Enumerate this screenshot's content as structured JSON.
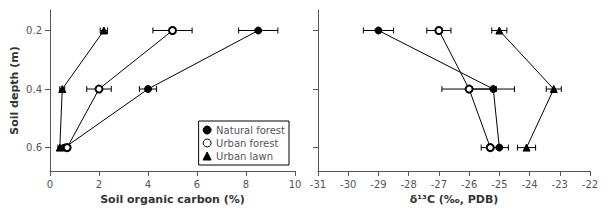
{
  "chart_data": [
    {
      "type": "line",
      "xlabel": "Soil organic carbon (%)",
      "ylabel": "Soil depth (m)",
      "xlim": [
        0,
        10
      ],
      "ylim": [
        0.68,
        0.13
      ],
      "xticks": [
        0,
        2,
        4,
        6,
        8,
        10
      ],
      "yticks": [
        0.2,
        0.4,
        0.6
      ],
      "grid": false,
      "legend": "lower right",
      "series": [
        {
          "name": "Natural forest",
          "color": "#000000",
          "marker": "circle",
          "x": [
            8.5,
            4.0,
            0.6
          ],
          "y": [
            0.2,
            0.4,
            0.6
          ],
          "xerr": [
            0.8,
            0.35,
            0.08
          ]
        },
        {
          "name": "Urban forest",
          "color": "#000000",
          "marker": "emptyCircle",
          "x": [
            5.0,
            2.0,
            0.7
          ],
          "y": [
            0.2,
            0.4,
            0.6
          ],
          "xerr": [
            0.8,
            0.5,
            0.08
          ]
        },
        {
          "name": "Urban lawn",
          "color": "#000000",
          "marker": "triangle",
          "x": [
            2.2,
            0.5,
            0.4
          ],
          "y": [
            0.2,
            0.4,
            0.6
          ],
          "xerr": [
            0.15,
            0.1,
            0.08
          ]
        }
      ]
    },
    {
      "type": "line",
      "xlabel": "δ¹³C (‰, PDB)",
      "xlim": [
        -31,
        -22
      ],
      "ylim": [
        0.68,
        0.13
      ],
      "xticks": [
        -31,
        -30,
        -29,
        -28,
        -27,
        -26,
        -25,
        -24,
        -23,
        -22
      ],
      "yticks": [
        0.2,
        0.4,
        0.6
      ],
      "grid": false,
      "tick_labels": "x",
      "series": [
        {
          "name": "Natural forest",
          "color": "#000000",
          "marker": "circle",
          "x": [
            -29.0,
            -25.2,
            -25.0
          ],
          "y": [
            0.2,
            0.4,
            0.6
          ],
          "xerr": [
            0.5,
            0.7,
            0.3
          ]
        },
        {
          "name": "Urban forest",
          "color": "#000000",
          "marker": "emptyCircle",
          "x": [
            -27.0,
            -26.0,
            -25.3
          ],
          "y": [
            0.2,
            0.4,
            0.6
          ],
          "xerr": [
            0.4,
            0.9,
            0.3
          ]
        },
        {
          "name": "Urban lawn",
          "color": "#000000",
          "marker": "triangle",
          "x": [
            -25.0,
            -23.2,
            -24.1
          ],
          "y": [
            0.2,
            0.4,
            0.6
          ],
          "xerr": [
            0.25,
            0.25,
            0.3
          ]
        }
      ]
    }
  ]
}
